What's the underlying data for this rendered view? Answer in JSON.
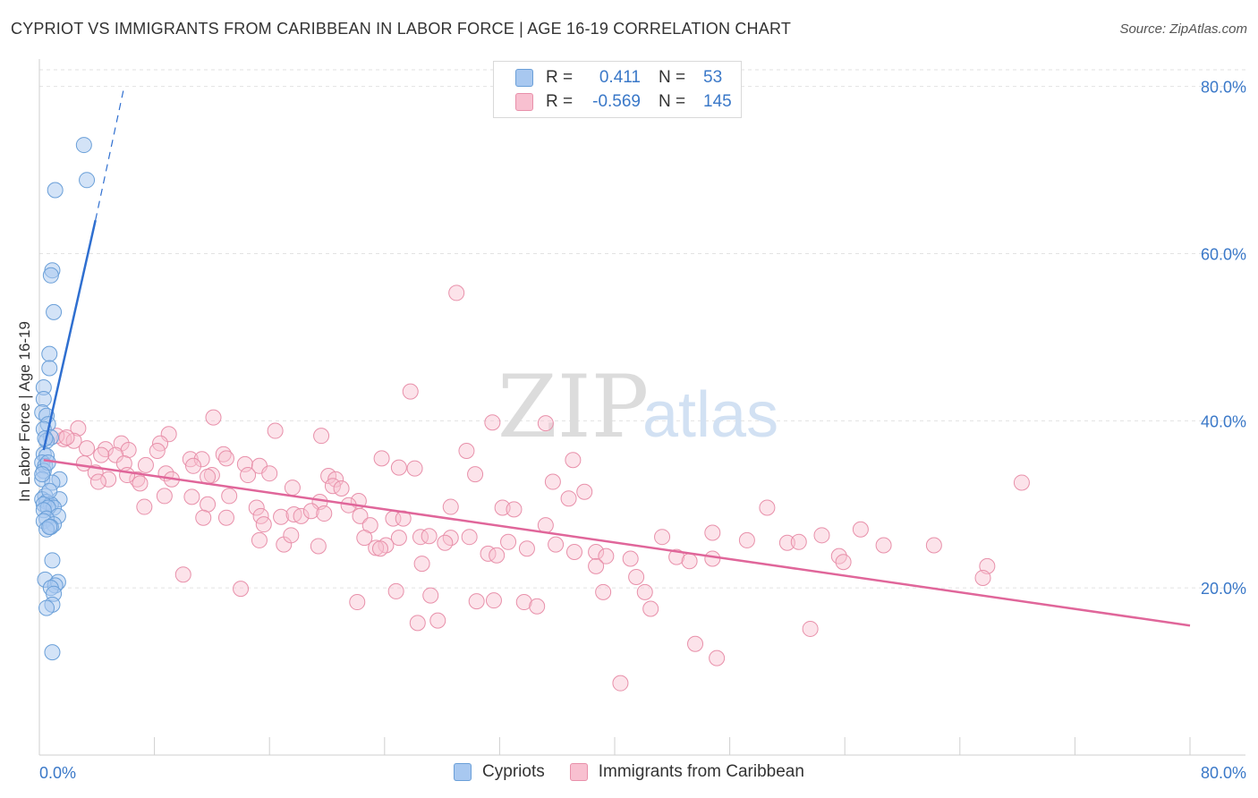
{
  "title": "CYPRIOT VS IMMIGRANTS FROM CARIBBEAN IN LABOR FORCE | AGE 16-19 CORRELATION CHART",
  "source": "Source: ZipAtlas.com",
  "watermark": {
    "zip": "ZIP",
    "atlas": "atlas"
  },
  "legend": {
    "rows": [
      {
        "r_label": "R =",
        "r_value": "0.411",
        "n_label": "N =",
        "n_value": "53",
        "color": "#a8c8f0",
        "border": "#6a9fd8"
      },
      {
        "r_label": "R =",
        "r_value": "-0.569",
        "n_label": "N =",
        "n_value": "145",
        "color": "#f8c0d0",
        "border": "#e890aa"
      }
    ],
    "bottom": [
      {
        "label": "Cypriots",
        "color": "#a8c8f0",
        "border": "#6a9fd8"
      },
      {
        "label": "Immigrants from Caribbean",
        "color": "#f8c0d0",
        "border": "#e890aa"
      }
    ]
  },
  "chart_data": {
    "type": "scatter",
    "title": "CYPRIOT VS IMMIGRANTS FROM CARIBBEAN IN LABOR FORCE | AGE 16-19 CORRELATION CHART",
    "ylabel": "In Labor Force | Age 16-19",
    "xlim": [
      0,
      80
    ],
    "ylim": [
      0,
      82
    ],
    "x_tick_labels": [
      "0.0%",
      "80.0%"
    ],
    "y_tick_values": [
      20,
      40,
      60,
      80
    ],
    "y_tick_labels": [
      "20.0%",
      "40.0%",
      "60.0%",
      "80.0%"
    ],
    "grid": true,
    "colors": {
      "cypriots": "#6a9fd8",
      "caribbean": "#e890aa",
      "cyp_line": "#2f6fd0",
      "car_line": "#e0669a",
      "tick_text": "#3a78c8"
    },
    "series": [
      {
        "name": "Cypriots",
        "points": [
          [
            3.1,
            73.0
          ],
          [
            3.3,
            68.8
          ],
          [
            1.1,
            67.6
          ],
          [
            0.9,
            58.0
          ],
          [
            0.8,
            57.4
          ],
          [
            1.0,
            53.0
          ],
          [
            0.7,
            48.0
          ],
          [
            0.7,
            46.3
          ],
          [
            0.3,
            44.0
          ],
          [
            0.3,
            42.6
          ],
          [
            0.2,
            41.0
          ],
          [
            0.5,
            40.6
          ],
          [
            0.6,
            39.6
          ],
          [
            0.3,
            39.0
          ],
          [
            0.8,
            38.0
          ],
          [
            0.5,
            37.6
          ],
          [
            0.3,
            36.0
          ],
          [
            0.5,
            35.8
          ],
          [
            0.2,
            35.0
          ],
          [
            0.4,
            34.6
          ],
          [
            0.3,
            34.0
          ],
          [
            0.2,
            33.0
          ],
          [
            1.4,
            33.0
          ],
          [
            0.9,
            32.6
          ],
          [
            0.4,
            31.0
          ],
          [
            0.2,
            30.6
          ],
          [
            1.4,
            30.6
          ],
          [
            0.5,
            30.3
          ],
          [
            0.8,
            30.0
          ],
          [
            0.3,
            30.0
          ],
          [
            1.0,
            29.6
          ],
          [
            0.6,
            29.6
          ],
          [
            0.3,
            29.3
          ],
          [
            1.3,
            28.6
          ],
          [
            0.5,
            28.3
          ],
          [
            0.3,
            28.0
          ],
          [
            1.0,
            27.6
          ],
          [
            0.8,
            27.3
          ],
          [
            0.5,
            27.0
          ],
          [
            0.7,
            27.3
          ],
          [
            0.9,
            23.3
          ],
          [
            0.4,
            21.0
          ],
          [
            1.3,
            20.7
          ],
          [
            1.1,
            20.3
          ],
          [
            0.8,
            20.0
          ],
          [
            1.0,
            19.3
          ],
          [
            0.9,
            18.0
          ],
          [
            0.5,
            17.6
          ],
          [
            0.9,
            12.3
          ],
          [
            0.4,
            37.9
          ],
          [
            0.6,
            35.0
          ],
          [
            0.2,
            33.6
          ],
          [
            0.7,
            31.6
          ]
        ]
      },
      {
        "name": "Immigrants from Caribbean",
        "points": [
          [
            29.0,
            55.3
          ],
          [
            25.8,
            43.5
          ],
          [
            12.1,
            40.4
          ],
          [
            31.5,
            39.8
          ],
          [
            35.2,
            39.7
          ],
          [
            16.4,
            38.8
          ],
          [
            9.0,
            38.4
          ],
          [
            19.6,
            38.2
          ],
          [
            2.7,
            39.1
          ],
          [
            1.7,
            37.8
          ],
          [
            1.2,
            38.2
          ],
          [
            2.4,
            37.6
          ],
          [
            5.7,
            37.3
          ],
          [
            8.4,
            37.3
          ],
          [
            3.3,
            36.7
          ],
          [
            4.6,
            36.6
          ],
          [
            6.2,
            36.5
          ],
          [
            8.2,
            36.4
          ],
          [
            12.8,
            36.0
          ],
          [
            5.3,
            35.9
          ],
          [
            4.3,
            35.9
          ],
          [
            10.5,
            35.4
          ],
          [
            11.3,
            35.4
          ],
          [
            13.0,
            35.5
          ],
          [
            23.8,
            35.5
          ],
          [
            29.7,
            36.4
          ],
          [
            37.1,
            35.3
          ],
          [
            10.7,
            34.6
          ],
          [
            14.3,
            34.8
          ],
          [
            15.3,
            34.6
          ],
          [
            5.9,
            34.9
          ],
          [
            3.1,
            34.9
          ],
          [
            7.4,
            34.7
          ],
          [
            25.0,
            34.4
          ],
          [
            26.1,
            34.3
          ],
          [
            3.9,
            33.8
          ],
          [
            8.8,
            33.7
          ],
          [
            12.0,
            33.5
          ],
          [
            14.5,
            33.5
          ],
          [
            16.0,
            33.7
          ],
          [
            11.7,
            33.3
          ],
          [
            4.8,
            33.0
          ],
          [
            6.8,
            33.0
          ],
          [
            20.1,
            33.4
          ],
          [
            20.6,
            33.0
          ],
          [
            30.3,
            33.6
          ],
          [
            7.0,
            32.5
          ],
          [
            4.1,
            32.7
          ],
          [
            35.7,
            32.7
          ],
          [
            20.4,
            32.2
          ],
          [
            17.6,
            32.0
          ],
          [
            21.0,
            31.9
          ],
          [
            37.9,
            31.5
          ],
          [
            68.3,
            32.6
          ],
          [
            8.7,
            31.0
          ],
          [
            10.6,
            30.9
          ],
          [
            13.2,
            31.0
          ],
          [
            22.2,
            30.4
          ],
          [
            19.5,
            30.3
          ],
          [
            36.8,
            30.7
          ],
          [
            11.7,
            30.0
          ],
          [
            7.3,
            29.7
          ],
          [
            15.1,
            29.6
          ],
          [
            21.5,
            29.9
          ],
          [
            28.6,
            29.7
          ],
          [
            32.2,
            29.6
          ],
          [
            33.0,
            29.4
          ],
          [
            50.6,
            29.6
          ],
          [
            15.4,
            28.6
          ],
          [
            16.8,
            28.5
          ],
          [
            17.7,
            28.8
          ],
          [
            18.2,
            28.6
          ],
          [
            18.9,
            29.2
          ],
          [
            19.8,
            28.9
          ],
          [
            22.3,
            28.6
          ],
          [
            24.6,
            28.3
          ],
          [
            25.3,
            28.3
          ],
          [
            13.0,
            28.4
          ],
          [
            11.4,
            28.4
          ],
          [
            15.6,
            27.6
          ],
          [
            23.0,
            27.5
          ],
          [
            35.2,
            27.5
          ],
          [
            46.8,
            26.6
          ],
          [
            57.1,
            27.0
          ],
          [
            15.3,
            25.7
          ],
          [
            17.0,
            25.2
          ],
          [
            17.5,
            26.3
          ],
          [
            22.6,
            26.0
          ],
          [
            25.0,
            26.0
          ],
          [
            26.5,
            26.1
          ],
          [
            27.1,
            26.2
          ],
          [
            28.6,
            26.0
          ],
          [
            29.9,
            26.1
          ],
          [
            32.6,
            25.5
          ],
          [
            43.3,
            26.1
          ],
          [
            49.2,
            25.7
          ],
          [
            52.0,
            25.4
          ],
          [
            52.8,
            25.5
          ],
          [
            54.4,
            26.3
          ],
          [
            19.4,
            25.0
          ],
          [
            24.1,
            25.1
          ],
          [
            23.4,
            24.8
          ],
          [
            23.7,
            24.7
          ],
          [
            28.2,
            25.4
          ],
          [
            33.9,
            24.7
          ],
          [
            35.9,
            25.2
          ],
          [
            37.2,
            24.3
          ],
          [
            38.7,
            24.3
          ],
          [
            39.4,
            23.8
          ],
          [
            41.1,
            23.5
          ],
          [
            31.2,
            24.1
          ],
          [
            31.8,
            23.9
          ],
          [
            44.3,
            23.7
          ],
          [
            45.2,
            23.2
          ],
          [
            46.8,
            23.5
          ],
          [
            55.6,
            23.8
          ],
          [
            55.9,
            23.1
          ],
          [
            58.7,
            25.1
          ],
          [
            62.2,
            25.1
          ],
          [
            65.9,
            22.6
          ],
          [
            26.6,
            22.9
          ],
          [
            38.7,
            22.6
          ],
          [
            10.0,
            21.6
          ],
          [
            41.5,
            21.3
          ],
          [
            65.6,
            21.2
          ],
          [
            14.0,
            19.9
          ],
          [
            24.8,
            19.6
          ],
          [
            27.2,
            19.1
          ],
          [
            39.2,
            19.5
          ],
          [
            42.1,
            19.5
          ],
          [
            30.4,
            18.4
          ],
          [
            31.6,
            18.5
          ],
          [
            22.1,
            18.3
          ],
          [
            33.7,
            18.3
          ],
          [
            34.6,
            17.8
          ],
          [
            42.5,
            17.5
          ],
          [
            27.7,
            16.1
          ],
          [
            26.3,
            15.8
          ],
          [
            53.6,
            15.1
          ],
          [
            45.6,
            13.3
          ],
          [
            47.1,
            11.6
          ],
          [
            40.4,
            8.6
          ],
          [
            1.9,
            38.0
          ],
          [
            6.1,
            33.5
          ],
          [
            9.2,
            33.0
          ]
        ]
      }
    ],
    "trend_lines": [
      {
        "series": "Cypriots",
        "solid": [
          [
            0.3,
            36.5
          ],
          [
            3.9,
            64.0
          ]
        ],
        "dashed": [
          [
            3.9,
            64.0
          ],
          [
            5.9,
            80.0
          ]
        ]
      },
      {
        "series": "Immigrants from Caribbean",
        "solid": [
          [
            0.3,
            35.3
          ],
          [
            80,
            15.5
          ]
        ]
      }
    ]
  }
}
